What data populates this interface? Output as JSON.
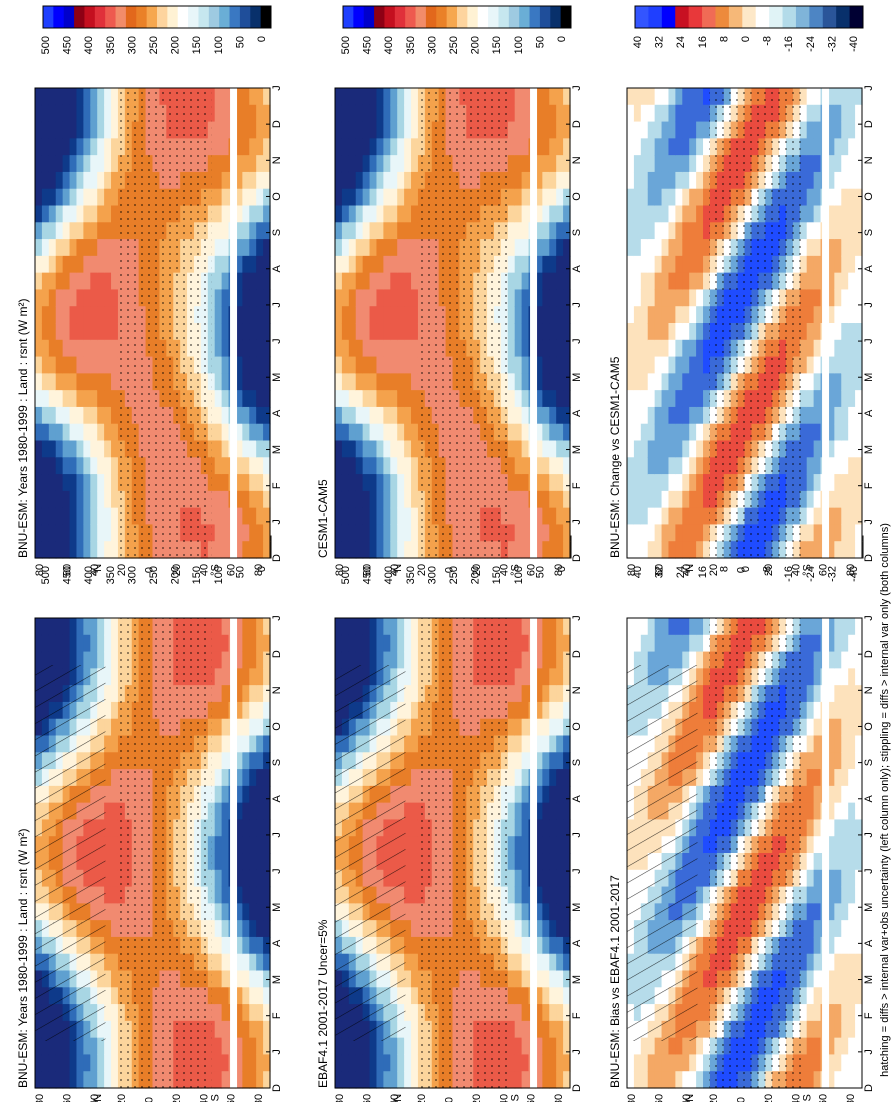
{
  "footer_note": "hatching = diffs > internal var+obs uncertainty (left column only); stippling = diffs > internal var only (both columns)",
  "latitude_unit": "°N",
  "latitude_unit_south": "°S",
  "month_ticks": [
    "D",
    "J",
    "F",
    "M",
    "A",
    "M",
    "J",
    "J",
    "A",
    "S",
    "O",
    "N",
    "D",
    "J"
  ],
  "colors": {
    "abs_scale": [
      "#000000",
      "#08306b",
      "#1f4e9a",
      "#3a78c2",
      "#6aaed6",
      "#9ecae1",
      "#c6e7ef",
      "#e8f6f9",
      "#ffffff",
      "#fff2d4",
      "#fdd49e",
      "#f6a74f",
      "#ea8128",
      "#e2681c",
      "#f28c6a",
      "#ee5a4f",
      "#e0303a",
      "#c40f1f",
      "#8e0014",
      "#0000cc",
      "#0000ff",
      "#1f3fff"
    ],
    "diff_scale": [
      "#000033",
      "#08306b",
      "#2a5599",
      "#4d85c4",
      "#7fb4d9",
      "#b3dbe9",
      "#e0f3f6",
      "#ffffff",
      "#fde8c8",
      "#f6b878",
      "#ed8a3c",
      "#f06b55",
      "#e8383a",
      "#c81022",
      "#0000ff",
      "#1f3fff",
      "#3355ff"
    ]
  },
  "chart_data": [
    {
      "panel": "top-left",
      "type": "heatmap",
      "title": "BNU-ESM: Years 1980-1999 : Land : rsnt (W m²)",
      "x_axis": "month (D..J)",
      "y_axis": "latitude",
      "yticks": [
        "80",
        "60",
        "40",
        "20",
        "0",
        "20",
        "40",
        "60",
        "80"
      ],
      "colorbar_ticks": [
        "0",
        "50",
        "100",
        "150",
        "200",
        "250",
        "300",
        "350",
        "400",
        "450",
        "500"
      ],
      "range": [
        0,
        500
      ],
      "hatching": true,
      "stippling": true
    },
    {
      "panel": "top-right",
      "type": "heatmap",
      "title": "BNU-ESM: Years 1980-1999 : Land : rsnt (W m²)",
      "x_axis": "month (D..J)",
      "y_axis": "latitude",
      "yticks": [
        "80",
        "60",
        "40",
        "20",
        "0",
        "20",
        "40",
        "60",
        "80"
      ],
      "colorbar_ticks": [
        "0",
        "50",
        "100",
        "150",
        "200",
        "250",
        "300",
        "350",
        "400",
        "450",
        "500"
      ],
      "range": [
        0,
        500
      ],
      "hatching": false,
      "stippling": true
    },
    {
      "panel": "middle-left",
      "type": "heatmap",
      "title": "EBAF4.1 2001-2017 Uncer=5%",
      "x_axis": "month (D..J)",
      "y_axis": "latitude",
      "yticks": [
        "80",
        "60",
        "40",
        "20",
        "0",
        "20",
        "40",
        "60",
        "80"
      ],
      "colorbar_ticks": [
        "0",
        "50",
        "100",
        "150",
        "200",
        "250",
        "300",
        "350",
        "400",
        "450",
        "500"
      ],
      "range": [
        0,
        500
      ],
      "hatching": true,
      "stippling": true
    },
    {
      "panel": "middle-right",
      "type": "heatmap",
      "title": "CESM1-CAM5",
      "x_axis": "month (D..J)",
      "y_axis": "latitude",
      "yticks": [
        "80",
        "60",
        "40",
        "20",
        "0",
        "20",
        "40",
        "60",
        "80"
      ],
      "colorbar_ticks": [
        "0",
        "50",
        "100",
        "150",
        "200",
        "250",
        "300",
        "350",
        "400",
        "450",
        "500"
      ],
      "range": [
        0,
        500
      ],
      "hatching": false,
      "stippling": true
    },
    {
      "panel": "bottom-left",
      "type": "heatmap",
      "title": "BNU-ESM: Bias vs EBAF4.1 2001-2017",
      "x_axis": "month (D..J)",
      "y_axis": "latitude",
      "yticks": [
        "80",
        "60",
        "40",
        "20",
        "0",
        "20",
        "40",
        "60",
        "80"
      ],
      "colorbar_ticks": [
        "-40",
        "-32",
        "-24",
        "-16",
        "-8",
        "0",
        "8",
        "16",
        "24",
        "32",
        "40"
      ],
      "range": [
        -40,
        40
      ],
      "hatching": true,
      "stippling": true
    },
    {
      "panel": "bottom-right",
      "type": "heatmap",
      "title": "BNU-ESM: Change vs CESM1-CAM5",
      "x_axis": "month (D..J)",
      "y_axis": "latitude",
      "yticks": [
        "80",
        "60",
        "40",
        "20",
        "0",
        "20",
        "40",
        "60",
        "80"
      ],
      "colorbar_ticks": [
        "-40",
        "-32",
        "-24",
        "-16",
        "-8",
        "0",
        "8",
        "16",
        "24",
        "32",
        "40"
      ],
      "range": [
        -40,
        40
      ],
      "hatching": false,
      "stippling": true
    }
  ]
}
